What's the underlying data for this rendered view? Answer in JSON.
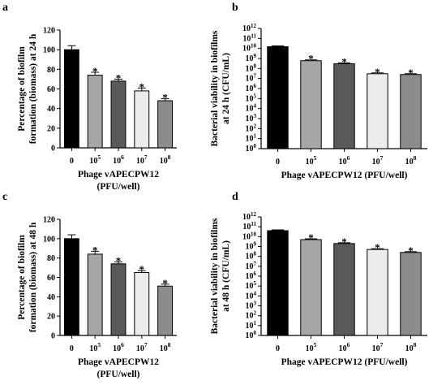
{
  "bar_colors": [
    "#000000",
    "#a6a6a6",
    "#595959",
    "#ececec",
    "#8c8c8c"
  ],
  "chart_data": [
    {
      "panel_label": "a",
      "type": "bar",
      "scale": "linear",
      "categories": [
        {
          "base": "0",
          "exp": ""
        },
        {
          "base": "10",
          "exp": "5"
        },
        {
          "base": "10",
          "exp": "6"
        },
        {
          "base": "10",
          "exp": "7"
        },
        {
          "base": "10",
          "exp": "8"
        }
      ],
      "values": [
        100,
        74,
        68,
        58,
        48
      ],
      "errors": [
        4,
        3,
        2,
        3,
        2
      ],
      "significant": [
        false,
        true,
        true,
        true,
        true
      ],
      "star_text": "*",
      "ylim": [
        0,
        120
      ],
      "yticks": [
        0,
        20,
        40,
        60,
        80,
        100,
        120
      ],
      "ylabel_lines": [
        "Percentage of biofilm",
        "formation (biomass) at 24 h"
      ],
      "xlabel_lines": [
        "Phage vAPECPW12",
        "(PFU/well)"
      ]
    },
    {
      "panel_label": "b",
      "type": "bar",
      "scale": "log",
      "categories": [
        {
          "base": "0",
          "exp": ""
        },
        {
          "base": "10",
          "exp": "5"
        },
        {
          "base": "10",
          "exp": "6"
        },
        {
          "base": "10",
          "exp": "7"
        },
        {
          "base": "10",
          "exp": "8"
        }
      ],
      "values": [
        15000000000.0,
        600000000.0,
        300000000.0,
        30000000.0,
        25000000.0
      ],
      "significant": [
        false,
        true,
        true,
        true,
        true
      ],
      "star_text": "*",
      "ylim_exp": [
        0,
        12
      ],
      "ylabel_lines": [
        "Bacterial viability in biofilms",
        "at 24 h (CFU/mL)"
      ],
      "xlabel_lines": [
        "Phage vAPECPW12  (PFU/well)"
      ]
    },
    {
      "panel_label": "c",
      "type": "bar",
      "scale": "linear",
      "categories": [
        {
          "base": "0",
          "exp": ""
        },
        {
          "base": "10",
          "exp": "5"
        },
        {
          "base": "10",
          "exp": "6"
        },
        {
          "base": "10",
          "exp": "7"
        },
        {
          "base": "10",
          "exp": "8"
        }
      ],
      "values": [
        100,
        84,
        74,
        65,
        51
      ],
      "errors": [
        4,
        3,
        2,
        2,
        2
      ],
      "significant": [
        false,
        true,
        true,
        true,
        true
      ],
      "star_text": "*",
      "ylim": [
        0,
        120
      ],
      "yticks": [
        0,
        20,
        40,
        60,
        80,
        100,
        120
      ],
      "ylabel_lines": [
        "Percentage of biofilm",
        "formation (biomass) at 48 h"
      ],
      "xlabel_lines": [
        "Phage vAPECPW12",
        "(PFU/well)"
      ]
    },
    {
      "panel_label": "d",
      "type": "bar",
      "scale": "log",
      "categories": [
        {
          "base": "0",
          "exp": ""
        },
        {
          "base": "10",
          "exp": "5"
        },
        {
          "base": "10",
          "exp": "6"
        },
        {
          "base": "10",
          "exp": "7"
        },
        {
          "base": "10",
          "exp": "8"
        }
      ],
      "values": [
        40000000000.0,
        5000000000.0,
        2000000000.0,
        500000000.0,
        250000000.0
      ],
      "significant": [
        false,
        true,
        true,
        true,
        true
      ],
      "star_text": "*",
      "ylim_exp": [
        0,
        12
      ],
      "ylabel_lines": [
        "Bacterial viability in biofilms",
        "at 48 h (CFU/mL)"
      ],
      "xlabel_lines": [
        "Phage vAPECPW12  (PFU/well)"
      ]
    }
  ]
}
